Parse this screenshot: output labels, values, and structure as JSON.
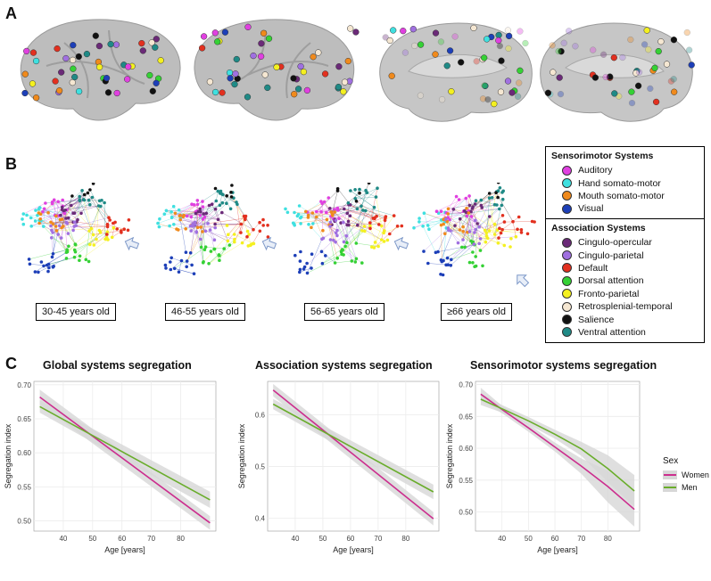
{
  "panels": {
    "a": "A",
    "b": "B",
    "c": "C"
  },
  "colors": {
    "auditory": "#e040e0",
    "hand": "#3fe0e0",
    "mouth": "#f08a1c",
    "visual": "#1d3fb8",
    "cingulo_opercular": "#6b2a78",
    "cingulo_parietal": "#a070e0",
    "default": "#e2301f",
    "dorsal_attention": "#35d135",
    "fronto_parietal": "#f4f020",
    "retrosplenial": "#f5e7d2",
    "salience": "#111111",
    "ventral_attention": "#1f8a86",
    "women": "#cc2e8e",
    "men": "#6aad2c",
    "ci": "#d7d7d7"
  },
  "age_groups": [
    "30-45 years old",
    "46-55 years old",
    "56-65 years old",
    "≥66 years old"
  ],
  "legend": {
    "sensorimotor": {
      "title": "Sensorimotor Systems",
      "items": [
        {
          "label": "Auditory",
          "color": "#e040e0"
        },
        {
          "label": "Hand somato-motor",
          "color": "#3fe0e0"
        },
        {
          "label": "Mouth somato-motor",
          "color": "#f08a1c"
        },
        {
          "label": "Visual",
          "color": "#1d3fb8"
        }
      ]
    },
    "association": {
      "title": "Association Systems",
      "items": [
        {
          "label": "Cingulo-opercular",
          "color": "#6b2a78"
        },
        {
          "label": "Cingulo-parietal",
          "color": "#a070e0"
        },
        {
          "label": "Default",
          "color": "#e2301f"
        },
        {
          "label": "Dorsal attention",
          "color": "#35d135"
        },
        {
          "label": "Fronto-parietal",
          "color": "#f4f020"
        },
        {
          "label": "Retrosplenial-temporal",
          "color": "#f5e7d2"
        },
        {
          "label": "Salience",
          "color": "#111111"
        },
        {
          "label": "Ventral attention",
          "color": "#1f8a86"
        }
      ]
    }
  },
  "sex_legend": {
    "title": "Sex",
    "items": [
      "Women",
      "Men"
    ]
  },
  "chart_data": [
    {
      "type": "line",
      "title": "Global systems segregation",
      "xlabel": "Age [years]",
      "ylabel": "Segregation index",
      "xlim": [
        30,
        92
      ],
      "ylim": [
        0.485,
        0.705
      ],
      "xticks": [
        40,
        50,
        60,
        70,
        80
      ],
      "yticks": [
        0.5,
        0.55,
        0.6,
        0.65,
        0.7
      ],
      "ytick_labels": [
        "0.50",
        "0.55",
        "0.60",
        "0.65",
        "0.70"
      ],
      "x": [
        32,
        90
      ],
      "series": [
        {
          "name": "Women",
          "values": [
            0.682,
            0.497
          ],
          "ci_lower": [
            0.671,
            0.487
          ],
          "ci_upper": [
            0.693,
            0.507
          ]
        },
        {
          "name": "Men",
          "values": [
            0.668,
            0.531
          ],
          "ci_lower": [
            0.659,
            0.519
          ],
          "ci_upper": [
            0.677,
            0.543
          ]
        }
      ]
    },
    {
      "type": "line",
      "title": "Association systems segregation",
      "xlabel": "Age [years]",
      "ylabel": "Segregation index",
      "xlim": [
        30,
        92
      ],
      "ylim": [
        0.375,
        0.665
      ],
      "xticks": [
        40,
        50,
        60,
        70,
        80
      ],
      "yticks": [
        0.4,
        0.5,
        0.6
      ],
      "ytick_labels": [
        "0.4",
        "0.5",
        "0.6"
      ],
      "x": [
        32,
        90
      ],
      "series": [
        {
          "name": "Women",
          "values": [
            0.648,
            0.399
          ],
          "ci_lower": [
            0.636,
            0.386
          ],
          "ci_upper": [
            0.66,
            0.412
          ]
        },
        {
          "name": "Men",
          "values": [
            0.621,
            0.451
          ],
          "ci_lower": [
            0.611,
            0.437
          ],
          "ci_upper": [
            0.631,
            0.465
          ]
        }
      ]
    },
    {
      "type": "line",
      "title": "Sensorimotor systems segregation",
      "xlabel": "Age [years]",
      "ylabel": "Segregation index",
      "xlim": [
        30,
        92
      ],
      "ylim": [
        0.47,
        0.705
      ],
      "xticks": [
        40,
        50,
        60,
        70,
        80
      ],
      "yticks": [
        0.5,
        0.55,
        0.6,
        0.65,
        0.7
      ],
      "ytick_labels": [
        "0.50",
        "0.55",
        "0.60",
        "0.65",
        "0.70"
      ],
      "x": [
        32,
        40,
        50,
        60,
        70,
        80,
        90
      ],
      "series": [
        {
          "name": "Women",
          "values": [
            0.685,
            0.661,
            0.632,
            0.602,
            0.572,
            0.54,
            0.504
          ],
          "ci_lower": [
            0.675,
            0.655,
            0.626,
            0.595,
            0.56,
            0.515,
            0.477
          ],
          "ci_upper": [
            0.695,
            0.667,
            0.638,
            0.609,
            0.584,
            0.565,
            0.531
          ]
        },
        {
          "name": "Men",
          "values": [
            0.677,
            0.662,
            0.643,
            0.622,
            0.599,
            0.568,
            0.533
          ],
          "ci_lower": [
            0.668,
            0.656,
            0.637,
            0.615,
            0.588,
            0.547,
            0.508
          ],
          "ci_upper": [
            0.686,
            0.668,
            0.649,
            0.629,
            0.61,
            0.589,
            0.558
          ]
        }
      ]
    }
  ]
}
